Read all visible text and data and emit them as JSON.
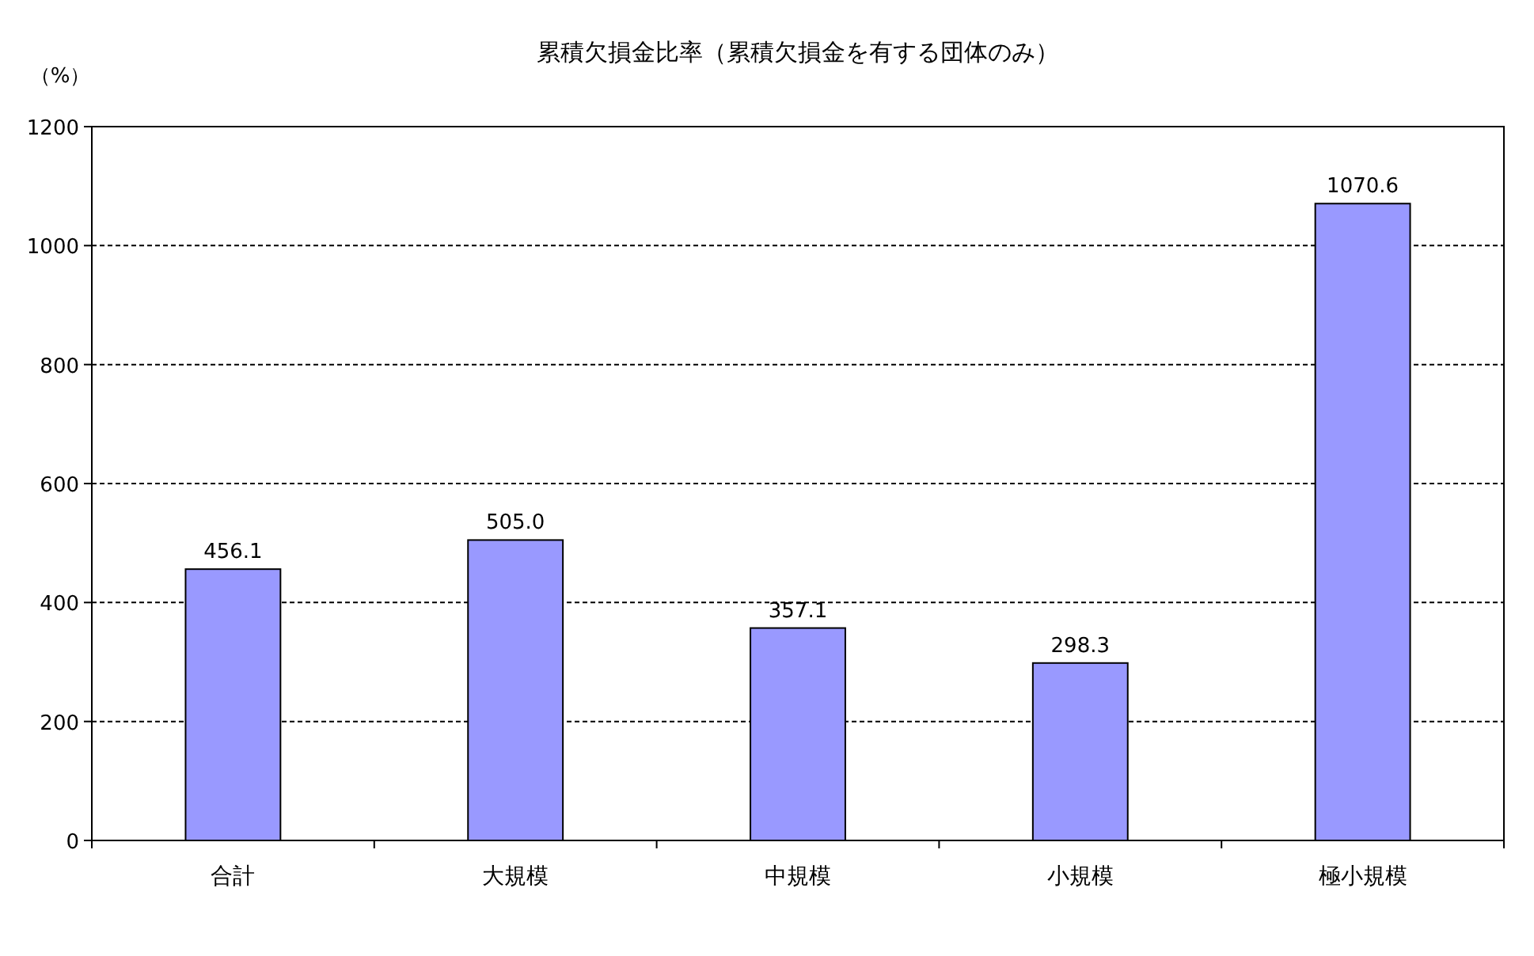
{
  "chart_data": {
    "type": "bar",
    "title": "累積欠損金比率（累積欠損金を有する団体のみ）",
    "ylabel": "（%）",
    "categories": [
      "合計",
      "大規模",
      "中規模",
      "小規模",
      "極小規模"
    ],
    "values": [
      456.1,
      505.0,
      357.1,
      298.3,
      1070.6
    ],
    "value_labels": [
      "456.1",
      "505.0",
      "357.1",
      "298.3",
      "1070.6"
    ],
    "color": "#9999ff",
    "ylim": [
      0,
      1200
    ],
    "yticks": [
      0,
      200,
      400,
      600,
      800,
      1000,
      1200
    ],
    "grid": "y"
  }
}
